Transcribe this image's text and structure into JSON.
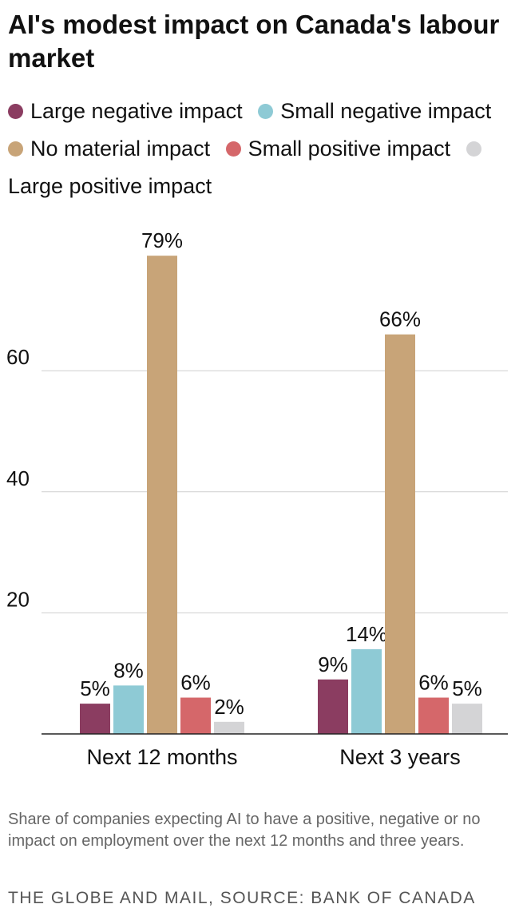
{
  "title": "AI's modest impact on Canada's labour market",
  "caption": "Share of companies expecting AI to have a positive, negative or no impact on employment over the next 12 months and three years.",
  "source": "THE GLOBE AND MAIL, SOURCE: BANK OF CANADA",
  "chart_data": {
    "type": "bar",
    "title": "AI's modest impact on Canada's labour market",
    "xlabel": "",
    "ylabel": "",
    "ylim": [
      0,
      80
    ],
    "yticks": [
      20,
      40,
      60
    ],
    "grid": true,
    "legend_position": "top",
    "categories": [
      "Next 12 months",
      "Next 3 years"
    ],
    "series": [
      {
        "name": "Large negative impact",
        "color": "#8b3d61",
        "values": [
          5,
          9
        ],
        "labels": [
          "5%",
          "9%"
        ]
      },
      {
        "name": "Small negative impact",
        "color": "#8ecad5",
        "values": [
          8,
          14
        ],
        "labels": [
          "8%",
          "14%"
        ]
      },
      {
        "name": "No material impact",
        "color": "#c8a478",
        "values": [
          79,
          66
        ],
        "labels": [
          "79%",
          "66%"
        ]
      },
      {
        "name": "Small positive impact",
        "color": "#d5676a",
        "values": [
          6,
          6
        ],
        "labels": [
          "6%",
          "6%"
        ]
      },
      {
        "name": "Large positive impact",
        "color": "#d4d4d6",
        "values": [
          2,
          5
        ],
        "labels": [
          "2%",
          "5%"
        ]
      }
    ]
  }
}
